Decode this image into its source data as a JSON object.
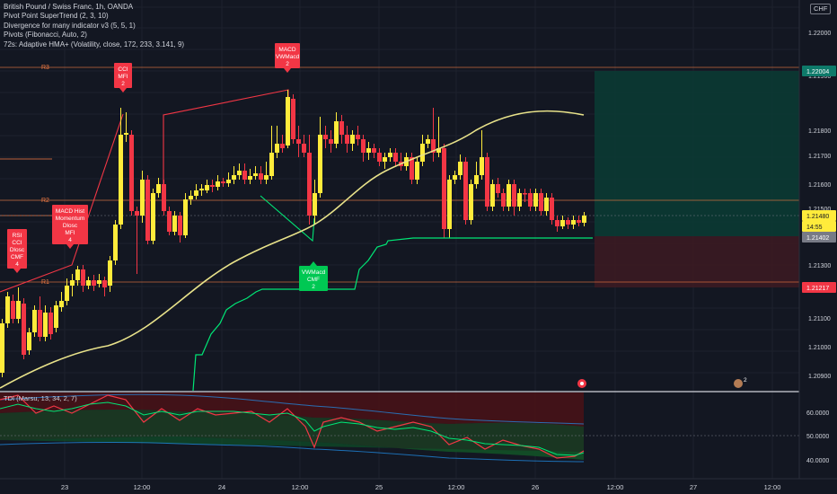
{
  "legend": {
    "title": "British Pound / Swiss Franc, 1h, OANDA",
    "line2": "Pivot Point SuperTrend (2, 3, 10)",
    "line3": "Divergence for many indicator v3 (5, 5, 1)",
    "line4": "Pivots (Fibonacci, Auto, 2)",
    "line5": "72s: Adaptive HMA+ (Volatility, close, 172, 233, 3.141, 9)"
  },
  "currency": "CHF",
  "price_axis": {
    "ticks": [
      "1.22000",
      "1.21900",
      "1.21800",
      "1.21700",
      "1.21600",
      "1.21500",
      "1.21300",
      "1.21100",
      "1.21000",
      "1.20900"
    ]
  },
  "price_labels": {
    "target": "1.22004",
    "current": "1.21480",
    "countdown": "14:55",
    "entry": "1.21402",
    "stop": "1.21217"
  },
  "pivots": {
    "r3": "R3",
    "r2": "R2",
    "r1": "R1"
  },
  "signals": [
    {
      "lines": [
        "RSI",
        "CCI",
        "Dlosc",
        "CMF",
        "4"
      ],
      "kind": "bear"
    },
    {
      "lines": [
        "MACD Hist",
        "Momentum",
        "Dlosc",
        "MFI",
        "4"
      ],
      "kind": "bear"
    },
    {
      "lines": [
        "CCI",
        "MFI",
        "2"
      ],
      "kind": "bear"
    },
    {
      "lines": [
        "MACD",
        "VWMacd",
        "2"
      ],
      "kind": "bear"
    },
    {
      "lines": [
        "VWMacd",
        "CMF",
        "2"
      ],
      "kind": "bull"
    }
  ],
  "event_badge": "2",
  "oscillator": {
    "title": "TDI (Marsu, 13, 34, 2, 7)",
    "ticks": [
      "60.0000",
      "50.0000",
      "40.0000"
    ]
  },
  "time_axis": [
    "23",
    "12:00",
    "24",
    "12:00",
    "25",
    "12:00",
    "26",
    "12:00",
    "27",
    "12:00"
  ],
  "colors": {
    "bull": "#ffeb3b",
    "bear": "#f23645",
    "supertrend_up": "#00e676",
    "hma": "#e8e28a",
    "pivot_line": "#f57c43",
    "target_zone": "#0d3b35",
    "stop_zone": "#3d1b22"
  }
}
